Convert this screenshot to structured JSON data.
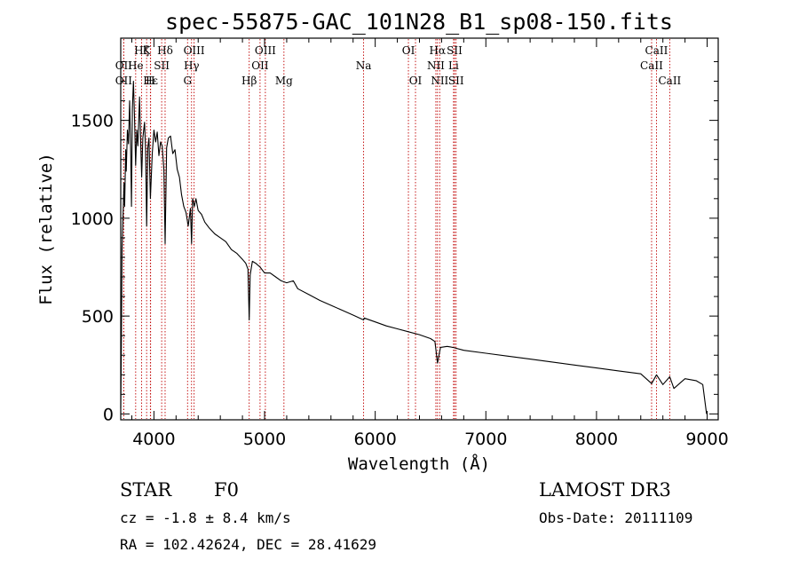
{
  "chart_data": {
    "type": "line",
    "title": "spec-55875-GAC_101N28_B1_sp08-150.fits",
    "xlabel": "Wavelength (Å)",
    "ylabel": "Flux (relative)",
    "xlim": [
      3700,
      9100
    ],
    "ylim": [
      -30,
      1920
    ],
    "xticks": [
      4000,
      5000,
      6000,
      7000,
      8000,
      9000
    ],
    "yticks": [
      0,
      500,
      1000,
      1500
    ],
    "series": [
      {
        "name": "spectrum",
        "x": [
          3700,
          3705,
          3712,
          3720,
          3730,
          3735,
          3745,
          3750,
          3760,
          3770,
          3780,
          3790,
          3797,
          3805,
          3815,
          3825,
          3835,
          3845,
          3855,
          3870,
          3880,
          3889,
          3900,
          3915,
          3925,
          3934,
          3945,
          3955,
          3968,
          3985,
          4000,
          4015,
          4030,
          4045,
          4060,
          4075,
          4090,
          4101,
          4115,
          4130,
          4150,
          4170,
          4190,
          4210,
          4230,
          4250,
          4270,
          4290,
          4310,
          4330,
          4340,
          4350,
          4365,
          4380,
          4400,
          4430,
          4460,
          4500,
          4550,
          4600,
          4650,
          4700,
          4750,
          4800,
          4830,
          4850,
          4861,
          4870,
          4890,
          4920,
          4960,
          5000,
          5050,
          5100,
          5150,
          5200,
          5260,
          5300,
          5400,
          5500,
          5600,
          5700,
          5800,
          5895,
          5900,
          6000,
          6100,
          6200,
          6300,
          6400,
          6500,
          6540,
          6563,
          6590,
          6650,
          6700,
          6800,
          7000,
          7200,
          7400,
          7600,
          7800,
          8000,
          8200,
          8400,
          8498,
          8542,
          8600,
          8662,
          8700,
          8800,
          8900,
          8960,
          8990,
          8995
        ],
        "values": [
          30,
          300,
          850,
          1000,
          1180,
          1060,
          1350,
          1240,
          1450,
          1380,
          1600,
          1350,
          1060,
          1560,
          1700,
          1500,
          1270,
          1450,
          1370,
          1620,
          1400,
          1210,
          1410,
          1490,
          1350,
          960,
          1360,
          1410,
          1100,
          1330,
          1450,
          1390,
          1440,
          1320,
          1390,
          1370,
          1250,
          870,
          1360,
          1410,
          1420,
          1330,
          1350,
          1250,
          1210,
          1120,
          1060,
          1030,
          960,
          1050,
          870,
          1100,
          1060,
          1100,
          1040,
          1020,
          980,
          950,
          920,
          900,
          880,
          840,
          820,
          790,
          770,
          740,
          480,
          710,
          780,
          770,
          750,
          720,
          720,
          700,
          680,
          670,
          680,
          640,
          610,
          580,
          555,
          530,
          505,
          480,
          490,
          470,
          450,
          435,
          420,
          405,
          385,
          370,
          260,
          340,
          345,
          340,
          325,
          310,
          295,
          280,
          265,
          250,
          235,
          220,
          205,
          155,
          200,
          150,
          190,
          130,
          180,
          170,
          150,
          20,
          0
        ]
      }
    ],
    "lines": [
      {
        "name": "Hζ",
        "wl": 3889,
        "row": 1
      },
      {
        "name": "OII",
        "wl": 3727,
        "row": 2
      },
      {
        "name": "OII",
        "wl": 3727,
        "row": 3
      },
      {
        "name": "Hε",
        "wl": 3970,
        "row": 3
      },
      {
        "name": "He",
        "wl": 3835,
        "row": 2
      },
      {
        "name": "K",
        "wl": 3934,
        "row": 1
      },
      {
        "name": "H",
        "wl": 3968,
        "row": 3
      },
      {
        "name": "SII",
        "wl": 4070,
        "row": 2
      },
      {
        "name": "Hδ",
        "wl": 4101,
        "row": 1
      },
      {
        "name": "OIII",
        "wl": 4363,
        "row": 1
      },
      {
        "name": "Hγ",
        "wl": 4340,
        "row": 2
      },
      {
        "name": "G",
        "wl": 4304,
        "row": 3
      },
      {
        "name": "Hβ",
        "wl": 4861,
        "row": 3
      },
      {
        "name": "OIII",
        "wl": 5007,
        "row": 1
      },
      {
        "name": "OII",
        "wl": 4959,
        "row": 2
      },
      {
        "name": "Mg",
        "wl": 5175,
        "row": 3
      },
      {
        "name": "Na",
        "wl": 5895,
        "row": 2
      },
      {
        "name": "OI",
        "wl": 6300,
        "row": 1
      },
      {
        "name": "OI",
        "wl": 6364,
        "row": 3
      },
      {
        "name": "Hα",
        "wl": 6563,
        "row": 1
      },
      {
        "name": "NII",
        "wl": 6548,
        "row": 2
      },
      {
        "name": "NII",
        "wl": 6583,
        "row": 3
      },
      {
        "name": "SII",
        "wl": 6717,
        "row": 1
      },
      {
        "name": "Li",
        "wl": 6708,
        "row": 2
      },
      {
        "name": "SII",
        "wl": 6731,
        "row": 3
      },
      {
        "name": "CaII",
        "wl": 8542,
        "row": 1
      },
      {
        "name": "CaII",
        "wl": 8498,
        "row": 2
      },
      {
        "name": "CaII",
        "wl": 8662,
        "row": 3
      }
    ],
    "line_color": "#c00000"
  },
  "info": {
    "object_class": "STAR",
    "subclass": "F0",
    "survey": "LAMOST DR3",
    "cz": "cz = -1.8 ± 8.4 km/s",
    "obs_date": "Obs-Date: 20111109",
    "coords": "RA = 102.42624, DEC =  28.41629"
  }
}
